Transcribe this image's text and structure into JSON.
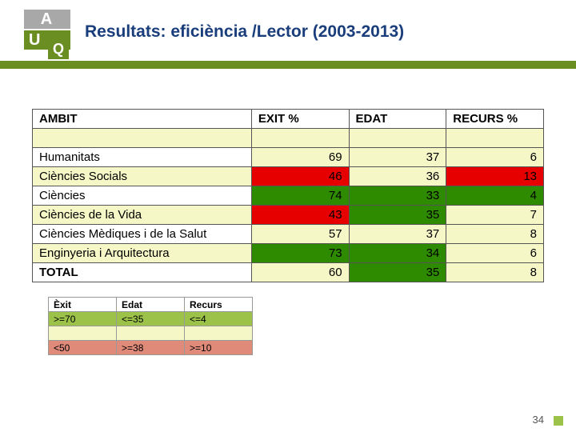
{
  "title": "Resultats: eficiència /Lector (2003-2013)",
  "page_number": "34",
  "colors": {
    "green": "#2e8b00",
    "red": "#e60000",
    "yellow": "#f5f7c6",
    "white": "#ffffff"
  },
  "table": {
    "columns": [
      "AMBIT",
      "EXIT %",
      "EDAT",
      "RECURS %"
    ],
    "rows": [
      {
        "ambit": "Humanitats",
        "ambit_bg": "#ffffff",
        "exit": 69,
        "exit_bg": "#f5f7c6",
        "edat": 37,
        "edat_bg": "#f5f7c6",
        "recurs": 6,
        "recurs_bg": "#f5f7c6"
      },
      {
        "ambit": "Ciències Socials",
        "ambit_bg": "#f5f7c6",
        "exit": 46,
        "exit_bg": "#e60000",
        "edat": 36,
        "edat_bg": "#f5f7c6",
        "recurs": 13,
        "recurs_bg": "#e60000"
      },
      {
        "ambit": "Ciències",
        "ambit_bg": "#ffffff",
        "exit": 74,
        "exit_bg": "#2e8b00",
        "edat": 33,
        "edat_bg": "#2e8b00",
        "recurs": 4,
        "recurs_bg": "#2e8b00"
      },
      {
        "ambit": "Ciències de la Vida",
        "ambit_bg": "#f5f7c6",
        "exit": 43,
        "exit_bg": "#e60000",
        "edat": 35,
        "edat_bg": "#2e8b00",
        "recurs": 7,
        "recurs_bg": "#f5f7c6"
      },
      {
        "ambit": "Ciències Mèdiques i de la Salut",
        "ambit_bg": "#ffffff",
        "exit": 57,
        "exit_bg": "#f5f7c6",
        "edat": 37,
        "edat_bg": "#f5f7c6",
        "recurs": 8,
        "recurs_bg": "#f5f7c6"
      },
      {
        "ambit": "Enginyeria i Arquitectura",
        "ambit_bg": "#f5f7c6",
        "exit": 73,
        "exit_bg": "#2e8b00",
        "edat": 34,
        "edat_bg": "#2e8b00",
        "recurs": 6,
        "recurs_bg": "#f5f7c6"
      },
      {
        "ambit": "TOTAL",
        "ambit_bg": "#ffffff",
        "ambit_bold": true,
        "exit": 60,
        "exit_bg": "#f5f7c6",
        "edat": 35,
        "edat_bg": "#2e8b00",
        "recurs": 8,
        "recurs_bg": "#f5f7c6"
      }
    ]
  },
  "legend": {
    "columns": [
      "Èxit",
      "Edat",
      "Recurs"
    ],
    "rows": [
      {
        "exit": ">=70",
        "edat": "<=35",
        "recurs": "<=4",
        "bg": "#9cc24a"
      },
      {
        "exit": "",
        "edat": "",
        "recurs": "",
        "bg": "#f5f7c6"
      },
      {
        "exit": "<50",
        "edat": ">=38",
        "recurs": ">=10",
        "bg": "#e08a7a"
      }
    ]
  }
}
